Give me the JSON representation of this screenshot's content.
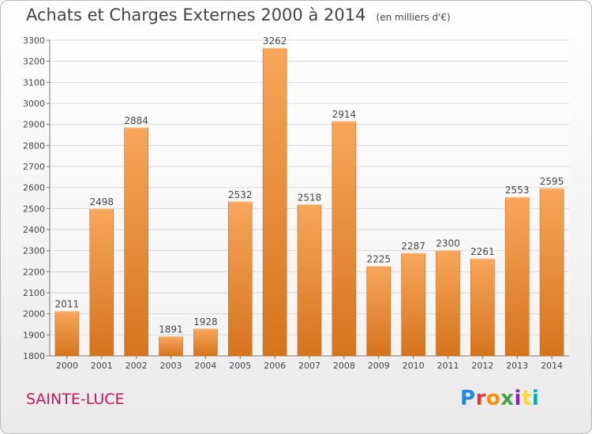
{
  "title": "Achats et Charges Externes 2000 à 2014",
  "unit": "(en milliers d'€)",
  "place": "SAINTE-LUCE",
  "logo": {
    "text": "Proxiti",
    "letters": [
      {
        "ch": "P",
        "color": "#1e88e5"
      },
      {
        "ch": "r",
        "color": "#e53935"
      },
      {
        "ch": "o",
        "color": "#fb8c00"
      },
      {
        "ch": "x",
        "color": "#43a047"
      },
      {
        "ch": "i",
        "color": "#8e24aa"
      },
      {
        "ch": "t",
        "color": "#fdd835"
      },
      {
        "ch": "i",
        "color": "#00acc1"
      }
    ]
  },
  "colors": {
    "bar_light": "#f7a65a",
    "bar_dark": "#d6741c",
    "grid": "#d8d8d8",
    "axis": "#777777"
  },
  "chart_data": {
    "type": "bar",
    "title": "Achats et Charges Externes 2000 à 2014",
    "subtitle": "(en milliers d'€)",
    "xlabel": "",
    "ylabel": "",
    "ylim": [
      1800,
      3300
    ],
    "yticks": [
      1800,
      1900,
      2000,
      2100,
      2200,
      2300,
      2400,
      2500,
      2600,
      2700,
      2800,
      2900,
      3000,
      3100,
      3200,
      3300
    ],
    "grid": true,
    "categories": [
      "2000",
      "2001",
      "2002",
      "2003",
      "2004",
      "2005",
      "2006",
      "2007",
      "2008",
      "2009",
      "2010",
      "2011",
      "2012",
      "2013",
      "2014"
    ],
    "values": [
      2011,
      2498,
      2884,
      1891,
      1928,
      2532,
      3262,
      2518,
      2914,
      2225,
      2287,
      2300,
      2261,
      2553,
      2595
    ]
  }
}
